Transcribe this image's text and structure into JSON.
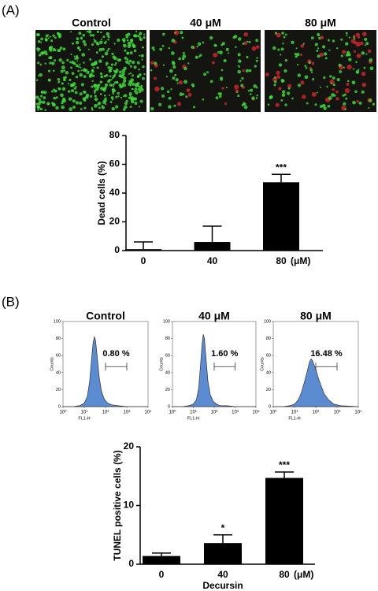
{
  "figure": {
    "panel_labels": [
      "(A)",
      "(B)"
    ],
    "micrograph_titles": [
      "Control",
      "40 μM",
      "80 μM"
    ]
  },
  "chart_data": [
    {
      "type": "bar",
      "ylabel": "Dead cells (%)",
      "categories": [
        "0",
        "40",
        "80"
      ],
      "x_unit": "(μM)",
      "values": [
        1,
        6,
        47.5
      ],
      "errors": [
        5,
        11,
        5.5
      ],
      "annotations": [
        null,
        null,
        "***"
      ],
      "color": "#000000",
      "ylim": [
        0,
        80
      ],
      "yticks": [
        0,
        20,
        40,
        60,
        80
      ]
    },
    {
      "type": "area",
      "title": "Control",
      "xlabel": "FL1-H",
      "ylabel": "Counts",
      "log_x": true,
      "color": "#5b8bd0",
      "x": [
        1,
        3,
        6,
        10,
        14,
        18,
        22,
        26,
        30,
        34,
        40,
        50,
        65,
        90,
        130,
        200,
        400,
        1000,
        3000,
        10000
      ],
      "values": [
        0,
        0,
        1,
        4,
        12,
        30,
        55,
        75,
        82,
        78,
        60,
        35,
        18,
        8,
        4,
        2,
        1,
        0,
        0,
        0
      ],
      "xlim": [
        1,
        10000
      ],
      "xticks": [
        {
          "value": 1,
          "label": "10⁰"
        },
        {
          "value": 10,
          "label": "10¹"
        },
        {
          "value": 100,
          "label": "10²"
        },
        {
          "value": 1000,
          "label": "10³"
        },
        {
          "value": 10000,
          "label": "10⁴"
        }
      ],
      "ylim": [
        0,
        100
      ],
      "yticks": [
        0,
        20,
        40,
        60,
        80,
        100
      ],
      "gate_range": [
        100,
        1000
      ],
      "gate_y": 47,
      "gate_label": "0.80 %"
    },
    {
      "type": "area",
      "title": "40 μM",
      "xlabel": "FL1-H",
      "ylabel": "Counts",
      "log_x": true,
      "color": "#5b8bd0",
      "x": [
        1,
        3,
        6,
        10,
        14,
        18,
        22,
        26,
        30,
        34,
        40,
        50,
        65,
        90,
        130,
        200,
        400,
        1000,
        3000,
        10000
      ],
      "values": [
        0,
        0,
        1,
        3,
        8,
        22,
        48,
        72,
        85,
        80,
        58,
        30,
        14,
        6,
        3,
        1,
        1,
        0,
        0,
        0
      ],
      "xlim": [
        1,
        10000
      ],
      "xticks": [
        {
          "value": 1,
          "label": "10⁰"
        },
        {
          "value": 10,
          "label": "10¹"
        },
        {
          "value": 100,
          "label": "10²"
        },
        {
          "value": 1000,
          "label": "10³"
        },
        {
          "value": 10000,
          "label": "10⁴"
        }
      ],
      "ylim": [
        0,
        100
      ],
      "yticks": [
        0,
        20,
        40,
        60,
        80,
        100
      ],
      "gate_range": [
        100,
        1000
      ],
      "gate_y": 47,
      "gate_label": "1.60 %"
    },
    {
      "type": "area",
      "title": "80 μM",
      "xlabel": "FL1-H",
      "ylabel": "Counts",
      "log_x": true,
      "color": "#5b8bd0",
      "x": [
        1,
        3,
        6,
        10,
        15,
        20,
        30,
        40,
        50,
        60,
        70,
        80,
        100,
        130,
        180,
        250,
        400,
        700,
        1500,
        10000
      ],
      "values": [
        0,
        0,
        1,
        3,
        8,
        15,
        30,
        42,
        52,
        56,
        54,
        50,
        44,
        34,
        24,
        15,
        8,
        3,
        1,
        0
      ],
      "xlim": [
        1,
        10000
      ],
      "xticks": [
        {
          "value": 1,
          "label": "10⁰"
        },
        {
          "value": 10,
          "label": "10¹"
        },
        {
          "value": 100,
          "label": "10²"
        },
        {
          "value": 1000,
          "label": "10³"
        },
        {
          "value": 10000,
          "label": "10⁴"
        }
      ],
      "ylim": [
        0,
        100
      ],
      "yticks": [
        0,
        20,
        40,
        60,
        80,
        100
      ],
      "gate_range": [
        100,
        1000
      ],
      "gate_y": 47,
      "gate_label": "16.48 %"
    },
    {
      "type": "bar",
      "ylabel": "TUNEL positive cells (%)",
      "xlabel": "Decursin",
      "categories": [
        "0",
        "40",
        "80"
      ],
      "x_unit": "(μM)",
      "values": [
        1.4,
        3.6,
        14.7
      ],
      "errors": [
        0.5,
        1.4,
        1.0
      ],
      "annotations": [
        null,
        "*",
        "***"
      ],
      "color": "#000000",
      "ylim": [
        0,
        20
      ],
      "yticks": [
        0,
        10,
        20
      ]
    }
  ]
}
